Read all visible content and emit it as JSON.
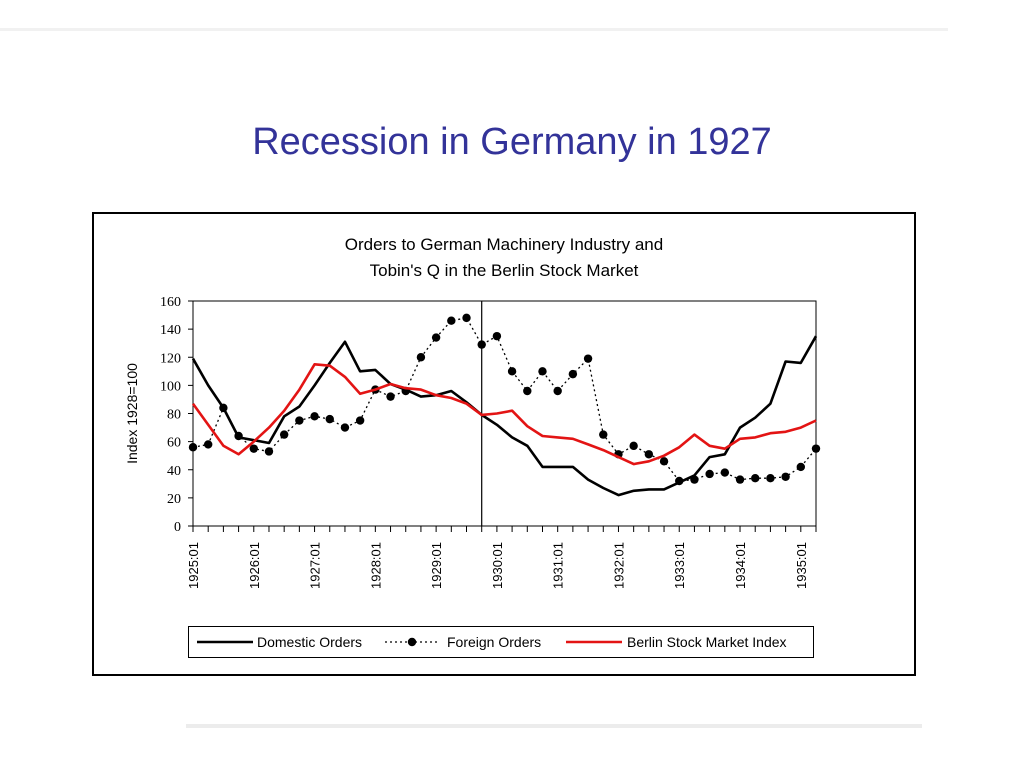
{
  "slide": {
    "title": "Recession in Germany in 1927"
  },
  "chart_data": {
    "type": "line",
    "title_lines": [
      "Orders to German Machinery Industry and",
      "Tobin's Q in the Berlin Stock Market"
    ],
    "ylabel": "Index 1928=100",
    "ylim": [
      0,
      160
    ],
    "yticks": [
      0,
      20,
      40,
      60,
      80,
      100,
      120,
      140,
      160
    ],
    "x_start": "1925:01",
    "x_step_months": 3,
    "x_tick_labels": [
      "1925:01",
      "1926:01",
      "1927:01",
      "1928:01",
      "1929:01",
      "1930:01",
      "1931:01",
      "1932:01",
      "1933:01",
      "1934:01",
      "1935:01"
    ],
    "vertical_marker": "1929:10",
    "grid": false,
    "legend_position": "bottom",
    "series": [
      {
        "name": "Domestic Orders",
        "color": "#000000",
        "style": "solid",
        "values": [
          119,
          100,
          84,
          63,
          61,
          59,
          78,
          85,
          100,
          116,
          131,
          110,
          111,
          101,
          97,
          92,
          93,
          96,
          88,
          79,
          72,
          63,
          57,
          42,
          42,
          42,
          33,
          27,
          22,
          25,
          26,
          26,
          31,
          36,
          49,
          51,
          70,
          77,
          87,
          117,
          116,
          135
        ]
      },
      {
        "name": "Foreign Orders",
        "color": "#000000",
        "style": "dotted-markers",
        "values": [
          56,
          58,
          84,
          64,
          55,
          53,
          65,
          75,
          78,
          76,
          70,
          75,
          97,
          92,
          96,
          120,
          134,
          146,
          148,
          129,
          135,
          110,
          96,
          110,
          96,
          108,
          119,
          65,
          51,
          57,
          51,
          46,
          32,
          33,
          37,
          38,
          33,
          34,
          34,
          35,
          42,
          55
        ]
      },
      {
        "name": "Berlin Stock Market Index",
        "color": "#e31414",
        "style": "solid",
        "values": [
          87,
          72,
          57,
          51,
          60,
          70,
          82,
          97,
          115,
          114,
          106,
          94,
          97,
          101,
          98,
          97,
          93,
          91,
          87,
          79,
          80,
          82,
          71,
          64,
          63,
          62,
          58,
          54,
          49,
          44,
          46,
          50,
          56,
          65,
          57,
          55,
          62,
          63,
          66,
          67,
          70,
          75
        ]
      }
    ]
  }
}
